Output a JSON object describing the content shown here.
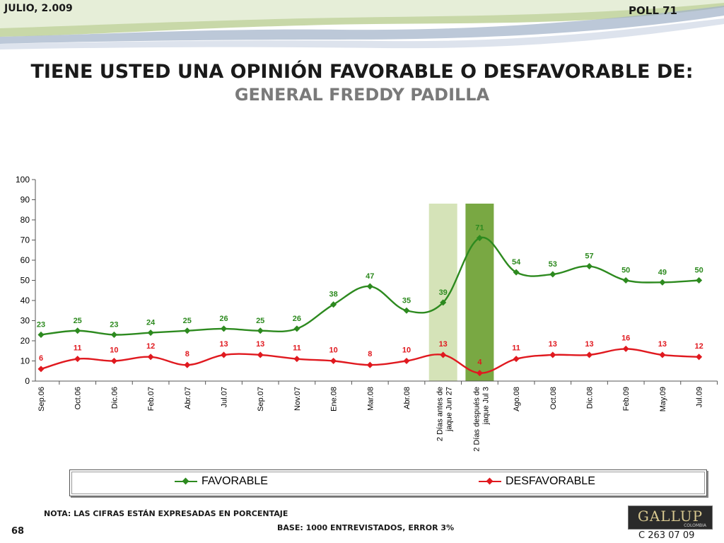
{
  "header": {
    "date": "JULIO, 2.009",
    "poll": "POLL 71"
  },
  "title": {
    "line1": "TIENE USTED UNA OPINIÓN FAVORABLE O DESFAVORABLE DE:",
    "line2": "GENERAL FREDDY PADILLA"
  },
  "footer": {
    "note": "NOTA: LAS CIFRAS ESTÁN EXPRESADAS EN PORCENTAJE",
    "base": "BASE: 1000 ENTREVISTADOS, ERROR 3%",
    "page": "68",
    "code": "C 263 07 09",
    "logo": "GALLUP",
    "logo_sub": "COLOMBIA"
  },
  "colors": {
    "favorable": "#2d8a1f",
    "desfavorable": "#e0191f",
    "band_light": "#d5e3b8",
    "band_dark": "#79a843"
  },
  "chart_data": {
    "type": "line",
    "categories": [
      "Sep.06",
      "Oct.06",
      "Dic.06",
      "Feb.07",
      "Abr.07",
      "Jul.07",
      "Sep.07",
      "Nov.07",
      "Ene.08",
      "Mar.08",
      "Abr.08",
      "2 Días antes de jaque Jun 27",
      "2 Días después de jaque Jul 3",
      "Ago.08",
      "Oct.08",
      "Dic.08",
      "Feb.09",
      "May.09",
      "Jul.09"
    ],
    "series": [
      {
        "name": "FAVORABLE",
        "values": [
          23,
          25,
          23,
          24,
          25,
          26,
          25,
          26,
          38,
          47,
          35,
          39,
          71,
          54,
          53,
          57,
          50,
          49,
          50
        ]
      },
      {
        "name": "DESFAVORABLE",
        "values": [
          6,
          11,
          10,
          12,
          8,
          13,
          13,
          11,
          10,
          8,
          10,
          13,
          4,
          11,
          13,
          13,
          16,
          13,
          12
        ]
      }
    ],
    "ylim": [
      0,
      100
    ],
    "yticks": [
      0,
      10,
      20,
      30,
      40,
      50,
      60,
      70,
      80,
      90,
      100
    ],
    "highlight_categories": [
      11,
      12
    ],
    "legend_position": "bottom",
    "grid": false
  }
}
